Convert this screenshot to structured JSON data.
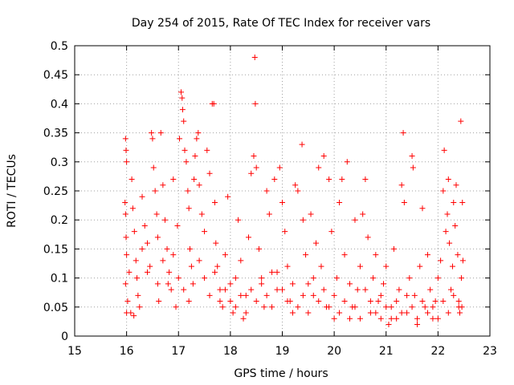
{
  "chart_data": {
    "type": "scatter",
    "title": "Day 254 of 2015, Rate Of TEC Index for receiver vars",
    "xlabel": "GPS time / hours",
    "ylabel": "ROTI / TECUs",
    "xlim": [
      15,
      23
    ],
    "ylim": [
      0,
      0.5
    ],
    "xticks": [
      15,
      16,
      17,
      18,
      19,
      20,
      21,
      22,
      23
    ],
    "yticks": [
      0,
      0.05,
      0.1,
      0.15,
      0.2,
      0.25,
      0.3,
      0.35,
      0.4,
      0.45,
      0.5
    ],
    "xtick_labels": [
      "15",
      "16",
      "17",
      "18",
      "19",
      "20",
      "21",
      "22",
      "23"
    ],
    "ytick_labels": [
      "0",
      "0.05",
      "0.1",
      "0.15",
      "0.2",
      "0.25",
      "0.3",
      "0.35",
      "0.4",
      "0.45",
      "0.5"
    ],
    "grid": true,
    "marker": "+",
    "color": "#ff0000",
    "series": [
      {
        "name": "ROTI",
        "points": [
          [
            15.98,
            0.34
          ],
          [
            15.99,
            0.32
          ],
          [
            16.0,
            0.3
          ],
          [
            15.97,
            0.23
          ],
          [
            15.98,
            0.21
          ],
          [
            15.99,
            0.17
          ],
          [
            16.0,
            0.14
          ],
          [
            15.98,
            0.09
          ],
          [
            16.0,
            0.04
          ],
          [
            16.02,
            0.06
          ],
          [
            16.1,
            0.27
          ],
          [
            16.12,
            0.22
          ],
          [
            16.15,
            0.18
          ],
          [
            16.18,
            0.13
          ],
          [
            16.2,
            0.1
          ],
          [
            16.22,
            0.07
          ],
          [
            16.25,
            0.05
          ],
          [
            16.05,
            0.11
          ],
          [
            16.08,
            0.04
          ],
          [
            16.14,
            0.035
          ],
          [
            16.3,
            0.24
          ],
          [
            16.35,
            0.19
          ],
          [
            16.4,
            0.16
          ],
          [
            16.45,
            0.12
          ],
          [
            16.48,
            0.35
          ],
          [
            16.5,
            0.34
          ],
          [
            16.52,
            0.29
          ],
          [
            16.55,
            0.25
          ],
          [
            16.58,
            0.21
          ],
          [
            16.6,
            0.09
          ],
          [
            16.62,
            0.06
          ],
          [
            16.66,
            0.35
          ],
          [
            16.7,
            0.26
          ],
          [
            16.74,
            0.2
          ],
          [
            16.78,
            0.15
          ],
          [
            16.82,
            0.11
          ],
          [
            16.86,
            0.08
          ],
          [
            16.9,
            0.27
          ],
          [
            16.95,
            0.05
          ],
          [
            16.98,
            0.19
          ],
          [
            17.02,
            0.34
          ],
          [
            17.05,
            0.42
          ],
          [
            17.07,
            0.41
          ],
          [
            17.08,
            0.39
          ],
          [
            17.1,
            0.37
          ],
          [
            17.12,
            0.32
          ],
          [
            17.15,
            0.3
          ],
          [
            17.18,
            0.25
          ],
          [
            17.2,
            0.22
          ],
          [
            17.22,
            0.15
          ],
          [
            17.25,
            0.12
          ],
          [
            17.28,
            0.09
          ],
          [
            17.3,
            0.27
          ],
          [
            17.32,
            0.31
          ],
          [
            17.35,
            0.34
          ],
          [
            17.38,
            0.35
          ],
          [
            17.4,
            0.26
          ],
          [
            17.45,
            0.21
          ],
          [
            17.5,
            0.18
          ],
          [
            17.55,
            0.32
          ],
          [
            17.6,
            0.28
          ],
          [
            17.65,
            0.4
          ],
          [
            17.68,
            0.4
          ],
          [
            17.7,
            0.23
          ],
          [
            17.72,
            0.16
          ],
          [
            17.75,
            0.12
          ],
          [
            17.8,
            0.08
          ],
          [
            17.85,
            0.05
          ],
          [
            17.9,
            0.14
          ],
          [
            17.95,
            0.24
          ],
          [
            18.0,
            0.06
          ],
          [
            18.05,
            0.04
          ],
          [
            18.1,
            0.1
          ],
          [
            18.15,
            0.2
          ],
          [
            18.2,
            0.13
          ],
          [
            18.25,
            0.03
          ],
          [
            18.3,
            0.07
          ],
          [
            18.35,
            0.17
          ],
          [
            18.4,
            0.28
          ],
          [
            18.45,
            0.31
          ],
          [
            18.47,
            0.48
          ],
          [
            18.48,
            0.4
          ],
          [
            18.5,
            0.29
          ],
          [
            18.55,
            0.15
          ],
          [
            18.6,
            0.09
          ],
          [
            18.65,
            0.05
          ],
          [
            18.7,
            0.25
          ],
          [
            18.75,
            0.21
          ],
          [
            18.8,
            0.11
          ],
          [
            18.85,
            0.27
          ],
          [
            18.9,
            0.08
          ],
          [
            18.95,
            0.29
          ],
          [
            19.0,
            0.23
          ],
          [
            19.05,
            0.18
          ],
          [
            19.1,
            0.12
          ],
          [
            19.15,
            0.06
          ],
          [
            19.2,
            0.04
          ],
          [
            19.25,
            0.26
          ],
          [
            19.3,
            0.25
          ],
          [
            19.38,
            0.33
          ],
          [
            19.4,
            0.2
          ],
          [
            19.45,
            0.14
          ],
          [
            19.5,
            0.09
          ],
          [
            19.55,
            0.21
          ],
          [
            19.6,
            0.07
          ],
          [
            19.65,
            0.16
          ],
          [
            19.7,
            0.29
          ],
          [
            19.75,
            0.12
          ],
          [
            19.8,
            0.31
          ],
          [
            19.85,
            0.05
          ],
          [
            19.9,
            0.27
          ],
          [
            19.95,
            0.18
          ],
          [
            20.0,
            0.03
          ],
          [
            20.05,
            0.1
          ],
          [
            20.1,
            0.23
          ],
          [
            20.15,
            0.27
          ],
          [
            20.2,
            0.14
          ],
          [
            20.25,
            0.3
          ],
          [
            20.3,
            0.03
          ],
          [
            20.35,
            0.05
          ],
          [
            20.4,
            0.2
          ],
          [
            20.45,
            0.08
          ],
          [
            20.5,
            0.12
          ],
          [
            20.55,
            0.21
          ],
          [
            20.6,
            0.27
          ],
          [
            20.65,
            0.17
          ],
          [
            20.7,
            0.04
          ],
          [
            20.75,
            0.1
          ],
          [
            20.8,
            0.14
          ],
          [
            20.85,
            0.06
          ],
          [
            20.9,
            0.03
          ],
          [
            20.95,
            0.09
          ],
          [
            21.0,
            0.12
          ],
          [
            21.05,
            0.02
          ],
          [
            21.1,
            0.05
          ],
          [
            21.15,
            0.15
          ],
          [
            21.2,
            0.03
          ],
          [
            21.25,
            0.08
          ],
          [
            21.3,
            0.26
          ],
          [
            21.33,
            0.35
          ],
          [
            21.35,
            0.23
          ],
          [
            21.4,
            0.04
          ],
          [
            21.45,
            0.1
          ],
          [
            21.5,
            0.31
          ],
          [
            21.52,
            0.29
          ],
          [
            21.55,
            0.07
          ],
          [
            21.6,
            0.02
          ],
          [
            21.65,
            0.12
          ],
          [
            21.7,
            0.22
          ],
          [
            21.75,
            0.05
          ],
          [
            21.8,
            0.14
          ],
          [
            21.85,
            0.08
          ],
          [
            21.9,
            0.03
          ],
          [
            21.95,
            0.06
          ],
          [
            22.0,
            0.1
          ],
          [
            22.05,
            0.13
          ],
          [
            22.1,
            0.25
          ],
          [
            22.12,
            0.32
          ],
          [
            22.15,
            0.18
          ],
          [
            22.18,
            0.21
          ],
          [
            22.2,
            0.27
          ],
          [
            22.22,
            0.16
          ],
          [
            22.25,
            0.08
          ],
          [
            22.28,
            0.12
          ],
          [
            22.3,
            0.23
          ],
          [
            22.33,
            0.19
          ],
          [
            22.35,
            0.26
          ],
          [
            22.38,
            0.14
          ],
          [
            22.4,
            0.06
          ],
          [
            22.42,
            0.04
          ],
          [
            22.44,
            0.37
          ],
          [
            22.45,
            0.1
          ],
          [
            22.46,
            0.05
          ],
          [
            22.47,
            0.23
          ],
          [
            22.48,
            0.13
          ],
          [
            16.3,
            0.15
          ],
          [
            16.4,
            0.11
          ],
          [
            16.6,
            0.17
          ],
          [
            16.7,
            0.13
          ],
          [
            16.8,
            0.09
          ],
          [
            16.9,
            0.14
          ],
          [
            17.0,
            0.1
          ],
          [
            17.1,
            0.08
          ],
          [
            17.2,
            0.06
          ],
          [
            17.4,
            0.13
          ],
          [
            17.5,
            0.1
          ],
          [
            17.6,
            0.07
          ],
          [
            17.7,
            0.11
          ],
          [
            17.8,
            0.06
          ],
          [
            17.9,
            0.08
          ],
          [
            18.0,
            0.09
          ],
          [
            18.1,
            0.05
          ],
          [
            18.2,
            0.07
          ],
          [
            18.3,
            0.04
          ],
          [
            18.4,
            0.08
          ],
          [
            18.5,
            0.06
          ],
          [
            18.6,
            0.1
          ],
          [
            18.7,
            0.07
          ],
          [
            18.8,
            0.05
          ],
          [
            18.9,
            0.11
          ],
          [
            19.0,
            0.08
          ],
          [
            19.1,
            0.06
          ],
          [
            19.2,
            0.09
          ],
          [
            19.3,
            0.05
          ],
          [
            19.4,
            0.07
          ],
          [
            19.5,
            0.04
          ],
          [
            19.6,
            0.1
          ],
          [
            19.7,
            0.06
          ],
          [
            19.8,
            0.08
          ],
          [
            19.9,
            0.05
          ],
          [
            20.0,
            0.07
          ],
          [
            20.1,
            0.04
          ],
          [
            20.2,
            0.06
          ],
          [
            20.3,
            0.09
          ],
          [
            20.4,
            0.05
          ],
          [
            20.5,
            0.03
          ],
          [
            20.6,
            0.08
          ],
          [
            20.7,
            0.06
          ],
          [
            20.8,
            0.04
          ],
          [
            20.9,
            0.07
          ],
          [
            21.0,
            0.05
          ],
          [
            21.1,
            0.03
          ],
          [
            21.2,
            0.06
          ],
          [
            21.3,
            0.04
          ],
          [
            21.4,
            0.07
          ],
          [
            21.5,
            0.05
          ],
          [
            21.6,
            0.03
          ],
          [
            21.7,
            0.06
          ],
          [
            21.8,
            0.04
          ],
          [
            21.9,
            0.05
          ],
          [
            22.0,
            0.03
          ],
          [
            22.1,
            0.06
          ],
          [
            22.2,
            0.04
          ],
          [
            22.3,
            0.07
          ],
          [
            22.4,
            0.05
          ]
        ]
      }
    ]
  }
}
